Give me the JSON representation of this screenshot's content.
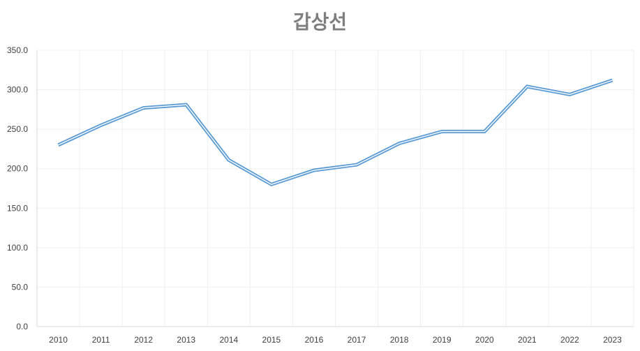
{
  "chart_data": {
    "type": "line",
    "title": "갑상선",
    "xlabel": "",
    "ylabel": "",
    "categories": [
      "2010",
      "2011",
      "2012",
      "2013",
      "2014",
      "2015",
      "2016",
      "2017",
      "2018",
      "2019",
      "2020",
      "2021",
      "2022",
      "2023"
    ],
    "series": [
      {
        "name": "",
        "values": [
          230,
          255,
          277,
          281,
          211,
          180,
          198,
          205,
          232,
          247,
          247,
          304,
          294,
          312
        ],
        "color": "#5b9bd5"
      }
    ],
    "ylim": [
      0,
      350
    ],
    "yticks": [
      0,
      50,
      100,
      150,
      200,
      250,
      300,
      350
    ],
    "ytick_labels": [
      "0.0",
      "50.0",
      "100.0",
      "150.0",
      "200.0",
      "250.0",
      "300.0",
      "350.0"
    ],
    "grid": true,
    "legend": "none"
  }
}
